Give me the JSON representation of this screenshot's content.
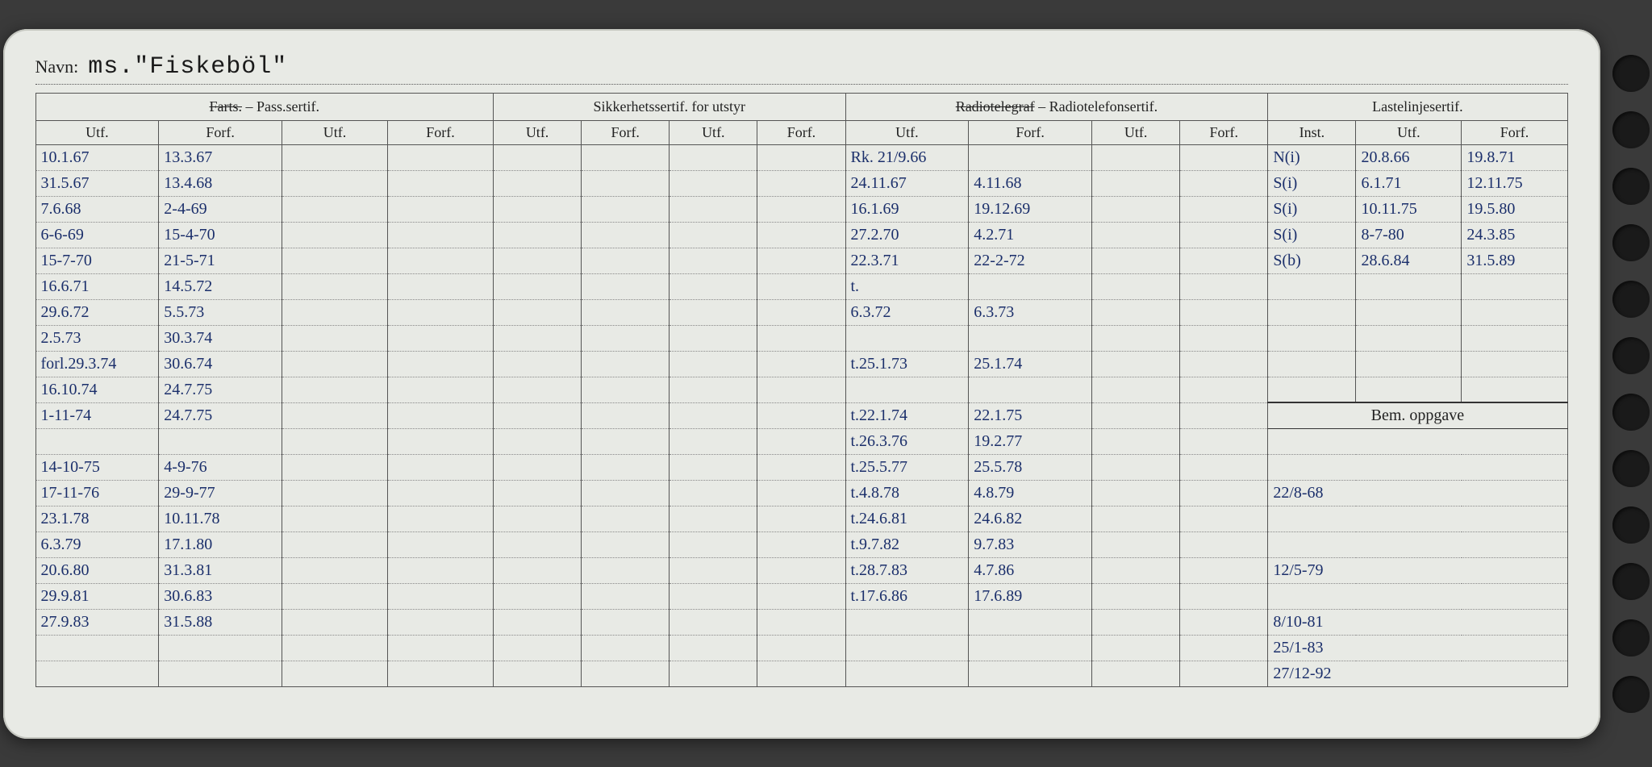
{
  "navn_label": "Navn:",
  "navn_value": "ms.\"Fiskeböl\"",
  "headers": {
    "g1": "Farts. – Pass.sertif.",
    "g1_strike": "Farts.",
    "g1_rest": " – Pass.sertif.",
    "g2": "Sikkerhetssertif. for utstyr",
    "g3_strike": "Radiotelegraf",
    "g3_rest": " – Radiotelefonsertif.",
    "g4": "Lastelinjesertif.",
    "utf": "Utf.",
    "forf": "Forf.",
    "inst": "Inst.",
    "bem": "Bem. oppgave"
  },
  "rows": [
    {
      "a1": "10.1.67",
      "a2": "13.3.67",
      "c1": "Rk. 21/9.66",
      "c2": "",
      "e1": "N(i)",
      "e2": "20.8.66",
      "e3": "19.8.71"
    },
    {
      "a1": "31.5.67",
      "a2": "13.4.68",
      "c1": "24.11.67",
      "c2": "4.11.68",
      "e1": "S(i)",
      "e2": "6.1.71",
      "e3": "12.11.75"
    },
    {
      "a1": "7.6.68",
      "a2": "2-4-69",
      "c1": "16.1.69",
      "c2": "19.12.69",
      "e1": "S(i)",
      "e2": "10.11.75",
      "e3": "19.5.80"
    },
    {
      "a1": "6-6-69",
      "a2": "15-4-70",
      "c1": "27.2.70",
      "c2": "4.2.71",
      "e1": "S(i)",
      "e2": "8-7-80",
      "e3": "24.3.85"
    },
    {
      "a1": "15-7-70",
      "a2": "21-5-71",
      "c1": "22.3.71",
      "c2": "22-2-72",
      "e1": "S(b)",
      "e2": "28.6.84",
      "e3": "31.5.89"
    },
    {
      "a1": "16.6.71",
      "a2": "14.5.72",
      "c1": "t.",
      "c2": "",
      "e1": "",
      "e2": "",
      "e3": ""
    },
    {
      "a1": "29.6.72",
      "a2": "5.5.73",
      "c1": "6.3.72",
      "c2": "6.3.73",
      "e1": "",
      "e2": "",
      "e3": ""
    },
    {
      "a1": "2.5.73",
      "a2": "30.3.74",
      "c1": "",
      "c2": "",
      "e1": "",
      "e2": "",
      "e3": ""
    },
    {
      "a1": "forl.29.3.74",
      "a2": "30.6.74",
      "c1": "t.25.1.73",
      "c2": "25.1.74",
      "e1": "",
      "e2": "",
      "e3": ""
    },
    {
      "a1": "16.10.74",
      "a2": "24.7.75",
      "c1": "",
      "c2": "",
      "e1": "",
      "e2": "",
      "e3": ""
    },
    {
      "a1": "1-11-74",
      "a2": "24.7.75",
      "c1": "t.22.1.74",
      "c2": "22.1.75",
      "e1": "",
      "e2": "",
      "e3": "",
      "bem_header": true
    },
    {
      "a1": "",
      "a2": "",
      "c1": "t.26.3.76",
      "c2": "19.2.77",
      "e1": "",
      "e2": "",
      "e3": ""
    },
    {
      "a1": "14-10-75",
      "a2": "4-9-76",
      "c1": "t.25.5.77",
      "c2": "25.5.78",
      "e1": "",
      "e2": "",
      "e3": ""
    },
    {
      "a1": "17-11-76",
      "a2": "29-9-77",
      "c1": "t.4.8.78",
      "c2": "4.8.79",
      "bem": "22/8-68"
    },
    {
      "a1": "23.1.78",
      "a2": "10.11.78",
      "c1": "t.24.6.81",
      "c2": "24.6.82",
      "bem": ""
    },
    {
      "a1": "6.3.79",
      "a2": "17.1.80",
      "c1": "t.9.7.82",
      "c2": "9.7.83",
      "bem": ""
    },
    {
      "a1": "20.6.80",
      "a2": "31.3.81",
      "c1": "t.28.7.83",
      "c2": "4.7.86",
      "bem": "12/5-79"
    },
    {
      "a1": "29.9.81",
      "a2": "30.6.83",
      "c1": "t.17.6.86",
      "c2": "17.6.89",
      "bem": ""
    },
    {
      "a1": "27.9.83",
      "a2": "31.5.88",
      "c1": "",
      "c2": "",
      "bem": "8/10-81"
    },
    {
      "a1": "",
      "a2": "",
      "c1": "",
      "c2": "",
      "bem": "25/1-83"
    },
    {
      "a1": "",
      "a2": "",
      "c1": "",
      "c2": "",
      "bem": "27/12-92"
    }
  ],
  "colors": {
    "paper": "#e8eae5",
    "ink_print": "#222222",
    "ink_pen": "#1b2f6b",
    "border": "#555555",
    "dotted": "#888888",
    "background": "#3a3a3a"
  }
}
